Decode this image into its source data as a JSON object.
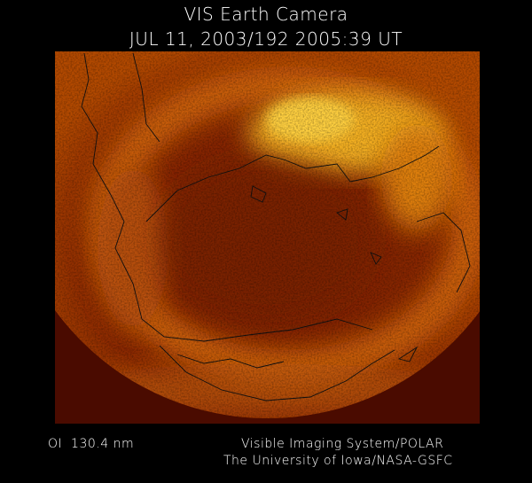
{
  "header": {
    "title": "VIS Earth Camera",
    "timestamp": "JUL 11, 2003/192 2005:39 UT"
  },
  "footer": {
    "wavelength": "OI  130.4 nm",
    "credit_line1": "Visible Imaging System/POLAR",
    "credit_line2": "The University of Iowa/NASA-GSFC"
  }
}
